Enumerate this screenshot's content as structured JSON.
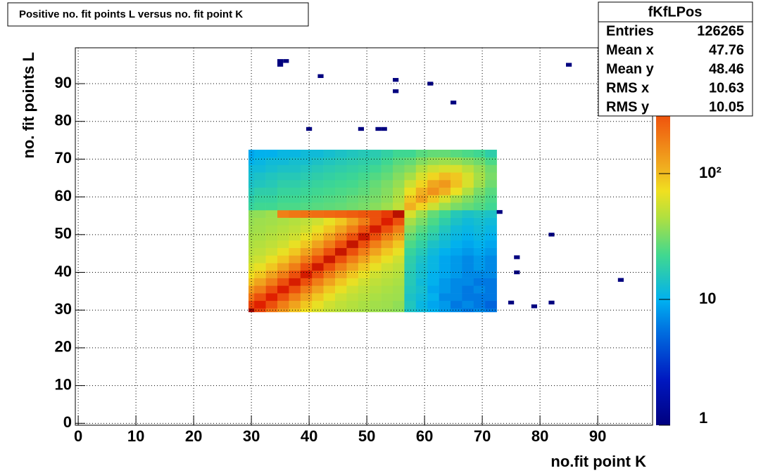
{
  "chart_data": {
    "type": "heatmap",
    "title": "Positive no. fit points L versus no. fit point K",
    "xlabel": "no.fit point K",
    "ylabel": "no. fit points  L",
    "xlim": [
      -0.5,
      99.5
    ],
    "ylim": [
      -0.5,
      99.5
    ],
    "xticks": [
      0,
      10,
      20,
      30,
      40,
      50,
      60,
      70,
      80,
      90
    ],
    "yticks": [
      0,
      10,
      20,
      30,
      40,
      50,
      60,
      70,
      80,
      90
    ],
    "grid": true,
    "xedges": [
      29.5,
      30.5,
      32.5,
      34.5,
      36.5,
      38.5,
      40.5,
      42.5,
      44.5,
      46.5,
      48.5,
      50.5,
      52.5,
      54.5,
      56.5,
      58.5,
      60.5,
      62.5,
      64.5,
      66.5,
      68.5,
      70.5,
      72.5
    ],
    "yedges": [
      29.5,
      30.5,
      32.5,
      34.5,
      36.5,
      38.5,
      40.5,
      42.5,
      44.5,
      46.5,
      48.5,
      50.5,
      52.5,
      54.5,
      56.5,
      58.5,
      60.5,
      62.5,
      64.5,
      66.5,
      68.5,
      70.5,
      72.5
    ],
    "z": [
      [
        900,
        340,
        200,
        140,
        95,
        72,
        60,
        52,
        47,
        44,
        42,
        40,
        38,
        36,
        14,
        12,
        10,
        8,
        7,
        6,
        7,
        6
      ],
      [
        340,
        500,
        300,
        185,
        125,
        90,
        68,
        56,
        50,
        46,
        43,
        41,
        40,
        37,
        15,
        11,
        9,
        8,
        6,
        7,
        6,
        5
      ],
      [
        200,
        300,
        500,
        300,
        185,
        125,
        90,
        68,
        56,
        50,
        46,
        43,
        41,
        40,
        14,
        12,
        10,
        7,
        7,
        6,
        6,
        6
      ],
      [
        140,
        185,
        300,
        520,
        300,
        185,
        125,
        90,
        68,
        56,
        50,
        46,
        43,
        41,
        15,
        13,
        9,
        8,
        7,
        6,
        7,
        6
      ],
      [
        95,
        125,
        185,
        300,
        540,
        300,
        185,
        125,
        90,
        68,
        56,
        50,
        46,
        43,
        16,
        12,
        10,
        8,
        7,
        7,
        6,
        6
      ],
      [
        72,
        90,
        125,
        185,
        300,
        560,
        300,
        185,
        125,
        90,
        68,
        56,
        50,
        46,
        16,
        13,
        10,
        9,
        8,
        7,
        7,
        7
      ],
      [
        60,
        68,
        90,
        125,
        185,
        300,
        580,
        300,
        185,
        125,
        90,
        68,
        56,
        50,
        17,
        13,
        11,
        9,
        8,
        7,
        8,
        7
      ],
      [
        52,
        56,
        68,
        90,
        125,
        185,
        300,
        600,
        300,
        185,
        125,
        90,
        68,
        56,
        18,
        14,
        11,
        9,
        8,
        7,
        8,
        7
      ],
      [
        47,
        50,
        56,
        68,
        90,
        125,
        185,
        300,
        620,
        300,
        185,
        125,
        90,
        68,
        20,
        16,
        12,
        10,
        9,
        8,
        9,
        8
      ],
      [
        44,
        46,
        50,
        56,
        68,
        90,
        125,
        185,
        300,
        640,
        300,
        185,
        125,
        90,
        24,
        19,
        14,
        12,
        10,
        9,
        10,
        9
      ],
      [
        42,
        43,
        46,
        50,
        56,
        68,
        90,
        125,
        185,
        300,
        600,
        300,
        185,
        125,
        28,
        22,
        17,
        13,
        11,
        10,
        11,
        10
      ],
      [
        40,
        41,
        43,
        46,
        50,
        56,
        68,
        90,
        125,
        185,
        300,
        560,
        300,
        185,
        34,
        26,
        20,
        15,
        12,
        11,
        12,
        11
      ],
      [
        38,
        40,
        41,
        43,
        46,
        50,
        56,
        68,
        90,
        125,
        185,
        300,
        520,
        300,
        42,
        32,
        24,
        18,
        14,
        12,
        13,
        12
      ],
      [
        36,
        37,
        40,
        180,
        200,
        210,
        220,
        230,
        240,
        260,
        280,
        300,
        380,
        700,
        60,
        40,
        28,
        22,
        16,
        14,
        15,
        14
      ],
      [
        20,
        22,
        22,
        24,
        24,
        25,
        26,
        27,
        28,
        30,
        32,
        35,
        40,
        50,
        110,
        80,
        55,
        40,
        32,
        28,
        25,
        22
      ],
      [
        18,
        20,
        20,
        22,
        22,
        23,
        24,
        25,
        26,
        28,
        30,
        32,
        36,
        45,
        90,
        130,
        90,
        60,
        42,
        34,
        28,
        24
      ],
      [
        16,
        18,
        18,
        20,
        20,
        21,
        22,
        23,
        24,
        25,
        27,
        30,
        34,
        42,
        70,
        110,
        150,
        110,
        70,
        45,
        32,
        26
      ],
      [
        14,
        15,
        16,
        18,
        18,
        19,
        20,
        21,
        22,
        23,
        25,
        28,
        32,
        38,
        55,
        80,
        120,
        140,
        95,
        60,
        40,
        30
      ],
      [
        13,
        14,
        15,
        16,
        16,
        17,
        18,
        19,
        20,
        21,
        23,
        25,
        28,
        34,
        42,
        60,
        80,
        100,
        90,
        60,
        42,
        32
      ],
      [
        12,
        12,
        13,
        14,
        14,
        15,
        16,
        17,
        18,
        19,
        20,
        22,
        25,
        30,
        34,
        45,
        55,
        60,
        60,
        48,
        38,
        30
      ],
      [
        10,
        11,
        12,
        12,
        13,
        13,
        14,
        15,
        16,
        17,
        18,
        19,
        22,
        26,
        28,
        34,
        38,
        40,
        38,
        34,
        30,
        24
      ],
      [
        9,
        10,
        10,
        11,
        11,
        12,
        12,
        13,
        14,
        15,
        16,
        17,
        19,
        22,
        22,
        26,
        28,
        28,
        26,
        24,
        22,
        18
      ]
    ],
    "sparse": {
      "x": [
        35,
        35,
        36,
        42,
        55,
        61,
        55,
        65,
        85,
        40,
        49,
        52,
        53,
        73,
        82,
        76,
        76,
        94,
        75,
        79,
        82
      ],
      "y": [
        96,
        95,
        96,
        92,
        91,
        90,
        88,
        85,
        95,
        78,
        78,
        78,
        78,
        56,
        50,
        44,
        40,
        38,
        32,
        31,
        32
      ],
      "values": [
        1,
        1,
        1,
        1,
        1,
        1,
        1,
        1,
        1,
        1,
        1,
        1,
        1,
        1,
        1,
        1,
        1,
        1,
        1,
        1,
        1
      ]
    },
    "zlog": true,
    "zlim": [
      1,
      1000
    ],
    "zticks": [
      1,
      10,
      {
        "value": 100,
        "label": "10²"
      }
    ],
    "palette": {
      "stops": [
        0,
        0.12,
        0.25,
        0.33,
        0.45,
        0.55,
        0.62,
        0.68,
        0.8,
        0.9,
        1
      ],
      "colors": [
        "#00007f",
        "#0018c0",
        "#0070e0",
        "#00b0f0",
        "#40d890",
        "#b0e040",
        "#f0e020",
        "#f0b020",
        "#f06010",
        "#e02000",
        "#900000"
      ]
    },
    "stats": {
      "title": "fKfLPos",
      "rows": [
        {
          "label": "Entries",
          "value": 126265
        },
        {
          "label": "Mean x",
          "value": 47.76
        },
        {
          "label": "Mean y",
          "value": 48.46
        },
        {
          "label": "RMS x",
          "value": 10.63
        },
        {
          "label": "RMS y",
          "value": 10.05
        }
      ]
    }
  }
}
